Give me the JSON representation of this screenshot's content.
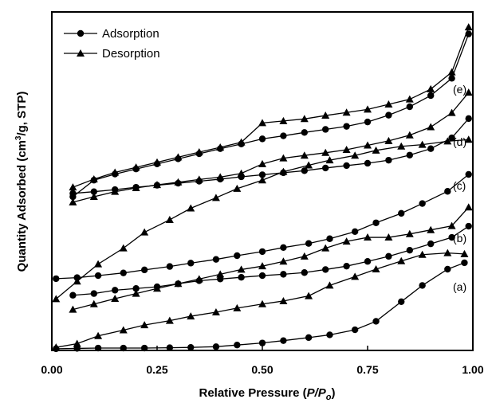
{
  "chart_data": {
    "type": "line",
    "xlabel_prefix": "Relative Pressure (",
    "xlabel_italic": "P/P",
    "xlabel_sub": "o",
    "xlabel_suffix": ")",
    "ylabel_prefix": "Quantity Adsorbed (cm",
    "ylabel_sup": "3",
    "ylabel_suffix": "/g, STP)",
    "xlim": [
      0,
      1
    ],
    "xticks": [
      "0.00",
      "0.25",
      "0.50",
      "0.75",
      "1.00"
    ],
    "ylim": [
      0,
      100
    ],
    "legend": {
      "position": "top-left",
      "entries": [
        {
          "name": "Adsorption",
          "marker": "circle"
        },
        {
          "name": "Desorption",
          "marker": "triangle"
        }
      ]
    },
    "curves": [
      {
        "label": "(a)",
        "adsorption": {
          "x": [
            0.01,
            0.06,
            0.11,
            0.17,
            0.22,
            0.28,
            0.33,
            0.39,
            0.44,
            0.5,
            0.55,
            0.61,
            0.66,
            0.72,
            0.77,
            0.83,
            0.88,
            0.94,
            0.98
          ],
          "y": [
            0.5,
            0.6,
            0.7,
            0.7,
            0.7,
            0.8,
            0.9,
            1.1,
            1.6,
            2.2,
            2.9,
            3.8,
            4.6,
            6.1,
            8.6,
            14.4,
            19.2,
            24.0,
            25.9
          ]
        },
        "desorption": {
          "x": [
            0.01,
            0.06,
            0.11,
            0.17,
            0.22,
            0.28,
            0.33,
            0.39,
            0.44,
            0.5,
            0.55,
            0.61,
            0.66,
            0.72,
            0.77,
            0.83,
            0.88,
            0.94,
            0.98
          ],
          "y": [
            0.9,
            2.0,
            4.3,
            6.0,
            7.5,
            8.8,
            10.1,
            11.3,
            12.5,
            13.7,
            14.6,
            16.1,
            19.2,
            21.8,
            24.0,
            26.4,
            28.3,
            28.8,
            28.5
          ]
        }
      },
      {
        "label": "(b)",
        "adsorption": {
          "x": [
            0.05,
            0.1,
            0.15,
            0.2,
            0.25,
            0.3,
            0.35,
            0.4,
            0.45,
            0.5,
            0.55,
            0.6,
            0.65,
            0.7,
            0.75,
            0.8,
            0.85,
            0.9,
            0.95,
            0.99
          ],
          "y": [
            16.3,
            16.8,
            17.8,
            18.3,
            18.8,
            19.7,
            20.6,
            21.1,
            21.6,
            22.1,
            22.5,
            23.0,
            23.9,
            24.9,
            26.3,
            27.8,
            29.6,
            31.5,
            33.4,
            36.7
          ]
        },
        "desorption": {
          "x": [
            0.05,
            0.1,
            0.15,
            0.2,
            0.25,
            0.3,
            0.35,
            0.4,
            0.45,
            0.5,
            0.55,
            0.6,
            0.65,
            0.7,
            0.75,
            0.8,
            0.85,
            0.9,
            0.95,
            0.99
          ],
          "y": [
            12.1,
            13.7,
            15.3,
            16.8,
            18.3,
            19.7,
            21.1,
            22.5,
            23.9,
            24.9,
            26.3,
            27.8,
            30.2,
            32.2,
            33.4,
            33.4,
            34.4,
            35.6,
            36.8,
            42.3
          ]
        }
      },
      {
        "label": "(c)",
        "adsorption": {
          "x": [
            0.01,
            0.06,
            0.11,
            0.17,
            0.22,
            0.28,
            0.33,
            0.39,
            0.44,
            0.5,
            0.55,
            0.61,
            0.66,
            0.72,
            0.77,
            0.83,
            0.88,
            0.94,
            0.99
          ],
          "y": [
            21.2,
            21.5,
            22.1,
            22.9,
            23.8,
            24.8,
            25.8,
            26.9,
            28.0,
            29.2,
            30.4,
            31.6,
            33.0,
            35.1,
            37.7,
            40.5,
            43.4,
            47.0,
            52.0
          ]
        },
        "desorption": {
          "x": [
            0.01,
            0.06,
            0.11,
            0.17,
            0.22,
            0.28,
            0.33,
            0.39,
            0.44,
            0.5,
            0.55,
            0.61,
            0.66,
            0.72,
            0.77,
            0.83,
            0.88,
            0.94,
            0.99
          ],
          "y": [
            15.2,
            20.4,
            25.5,
            30.2,
            34.9,
            38.6,
            42.0,
            45.1,
            47.8,
            50.3,
            52.8,
            54.7,
            56.2,
            57.6,
            59.1,
            60.3,
            60.8,
            61.8,
            62.3
          ]
        }
      },
      {
        "label": "(d)",
        "adsorption": {
          "x": [
            0.05,
            0.1,
            0.15,
            0.2,
            0.25,
            0.3,
            0.35,
            0.4,
            0.45,
            0.5,
            0.55,
            0.6,
            0.65,
            0.7,
            0.75,
            0.8,
            0.85,
            0.9,
            0.95,
            0.99
          ],
          "y": [
            46.4,
            46.9,
            47.5,
            48.2,
            48.8,
            49.4,
            50.0,
            50.6,
            51.3,
            51.9,
            52.5,
            53.1,
            53.9,
            54.6,
            55.3,
            56.2,
            57.7,
            59.6,
            62.8,
            68.5
          ]
        },
        "desorption": {
          "x": [
            0.05,
            0.1,
            0.15,
            0.2,
            0.25,
            0.3,
            0.35,
            0.4,
            0.45,
            0.5,
            0.55,
            0.6,
            0.65,
            0.7,
            0.75,
            0.8,
            0.85,
            0.9,
            0.95,
            0.99
          ],
          "y": [
            43.8,
            45.4,
            46.9,
            48.0,
            48.9,
            49.7,
            50.5,
            51.2,
            52.3,
            55.1,
            56.8,
            57.6,
            58.4,
            59.3,
            60.6,
            61.9,
            63.6,
            66.0,
            70.2,
            76.2
          ]
        }
      },
      {
        "label": "(e)",
        "adsorption": {
          "x": [
            0.05,
            0.1,
            0.15,
            0.2,
            0.25,
            0.3,
            0.35,
            0.4,
            0.45,
            0.5,
            0.55,
            0.6,
            0.65,
            0.7,
            0.75,
            0.8,
            0.85,
            0.9,
            0.95,
            0.99
          ],
          "y": [
            45.4,
            50.3,
            52.1,
            53.6,
            55.1,
            56.6,
            58.1,
            59.6,
            61.0,
            62.5,
            63.4,
            64.4,
            65.3,
            66.2,
            67.5,
            69.5,
            72.0,
            75.3,
            80.4,
            93.5
          ]
        },
        "desorption": {
          "x": [
            0.05,
            0.1,
            0.15,
            0.2,
            0.25,
            0.3,
            0.35,
            0.4,
            0.45,
            0.5,
            0.55,
            0.6,
            0.65,
            0.7,
            0.75,
            0.8,
            0.85,
            0.9,
            0.95,
            0.99
          ],
          "y": [
            48.2,
            50.6,
            52.6,
            54.1,
            55.6,
            57.1,
            58.6,
            60.0,
            61.5,
            67.2,
            67.8,
            68.4,
            69.4,
            70.3,
            71.2,
            72.7,
            74.2,
            77.2,
            82.2,
            95.5
          ]
        }
      }
    ]
  }
}
